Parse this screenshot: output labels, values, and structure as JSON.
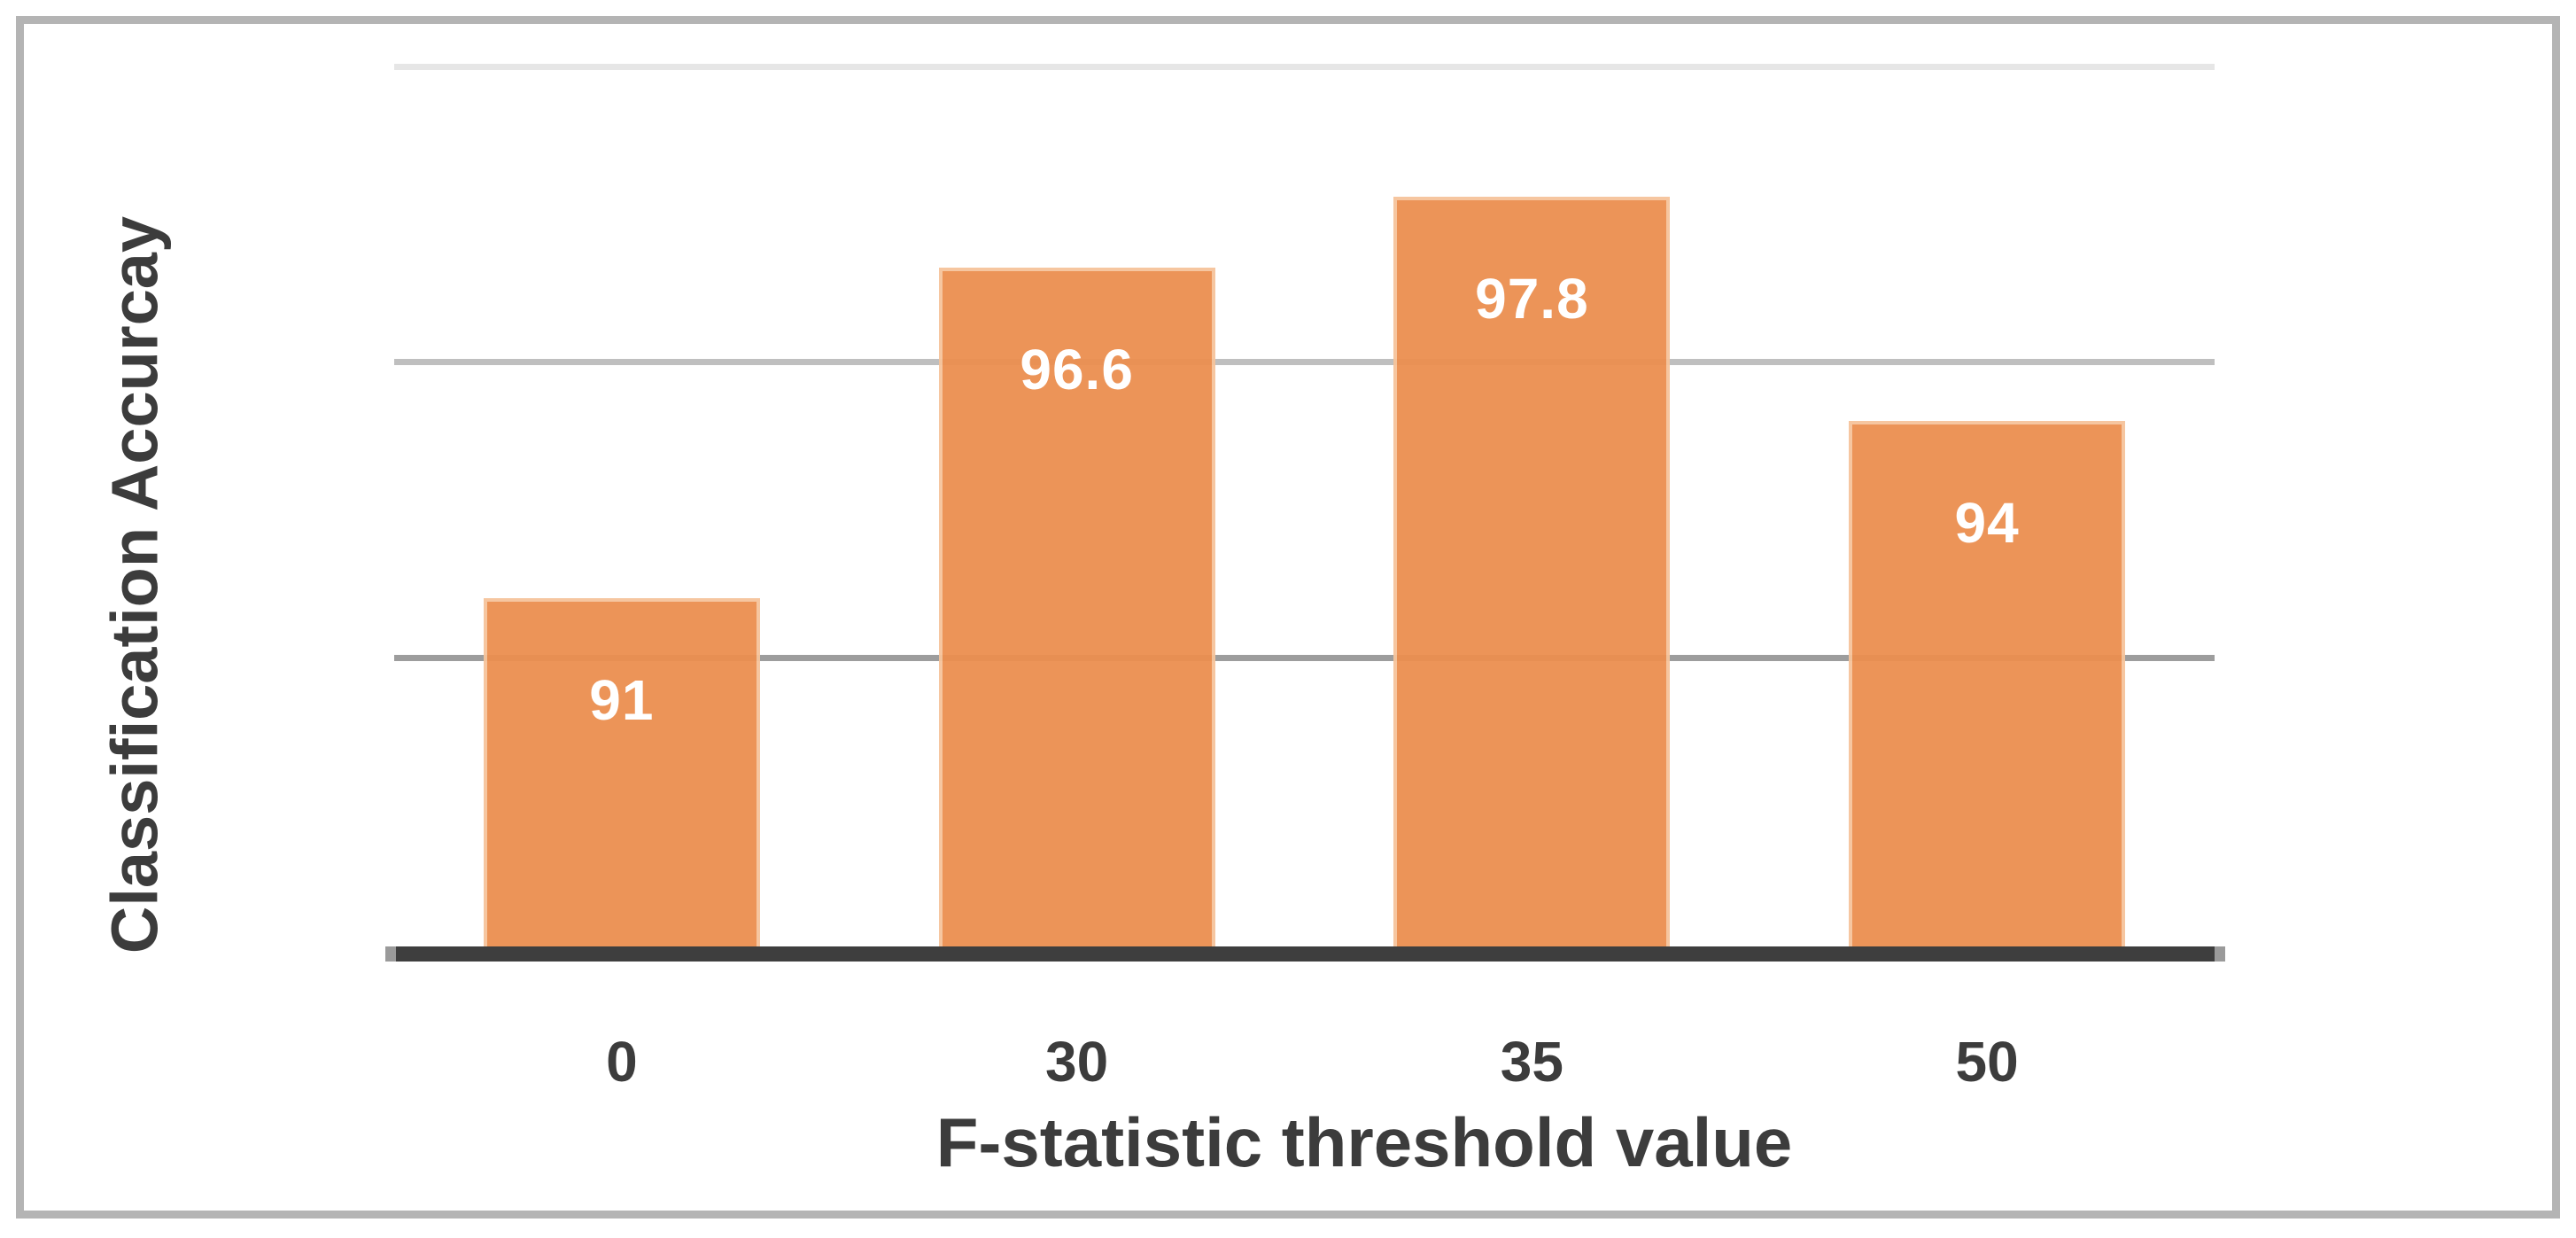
{
  "chart_data": {
    "type": "bar",
    "title": "",
    "xlabel": "F-statistic threshold value",
    "ylabel": "Classification Accurcay",
    "categories": [
      "0",
      "30",
      "35",
      "50"
    ],
    "values": [
      91,
      96.6,
      97.8,
      94
    ],
    "value_labels": [
      "91",
      "96.6",
      "97.8",
      "94"
    ],
    "ylim": [
      85,
      100
    ],
    "gridline_values": [
      90,
      95,
      100
    ],
    "gridline_colors": {
      "90": "#9D9D9D",
      "95": "#BFBFBF",
      "100": "#E6E6E6"
    },
    "grid": "horizontal-only",
    "legend_position": "none",
    "y_tick_labels_visible": false,
    "bar_color": "#EC8F50",
    "bar_edge_color": "#F6C49B",
    "value_label_color": "#FFFFFF",
    "axis_line_color": "#3E3E3E",
    "axis_cap_color": "#9A9A9A",
    "text_color": "#3C3C3C",
    "frame_border_color": "#B4B4B4",
    "background_color": "#FFFFFF"
  }
}
